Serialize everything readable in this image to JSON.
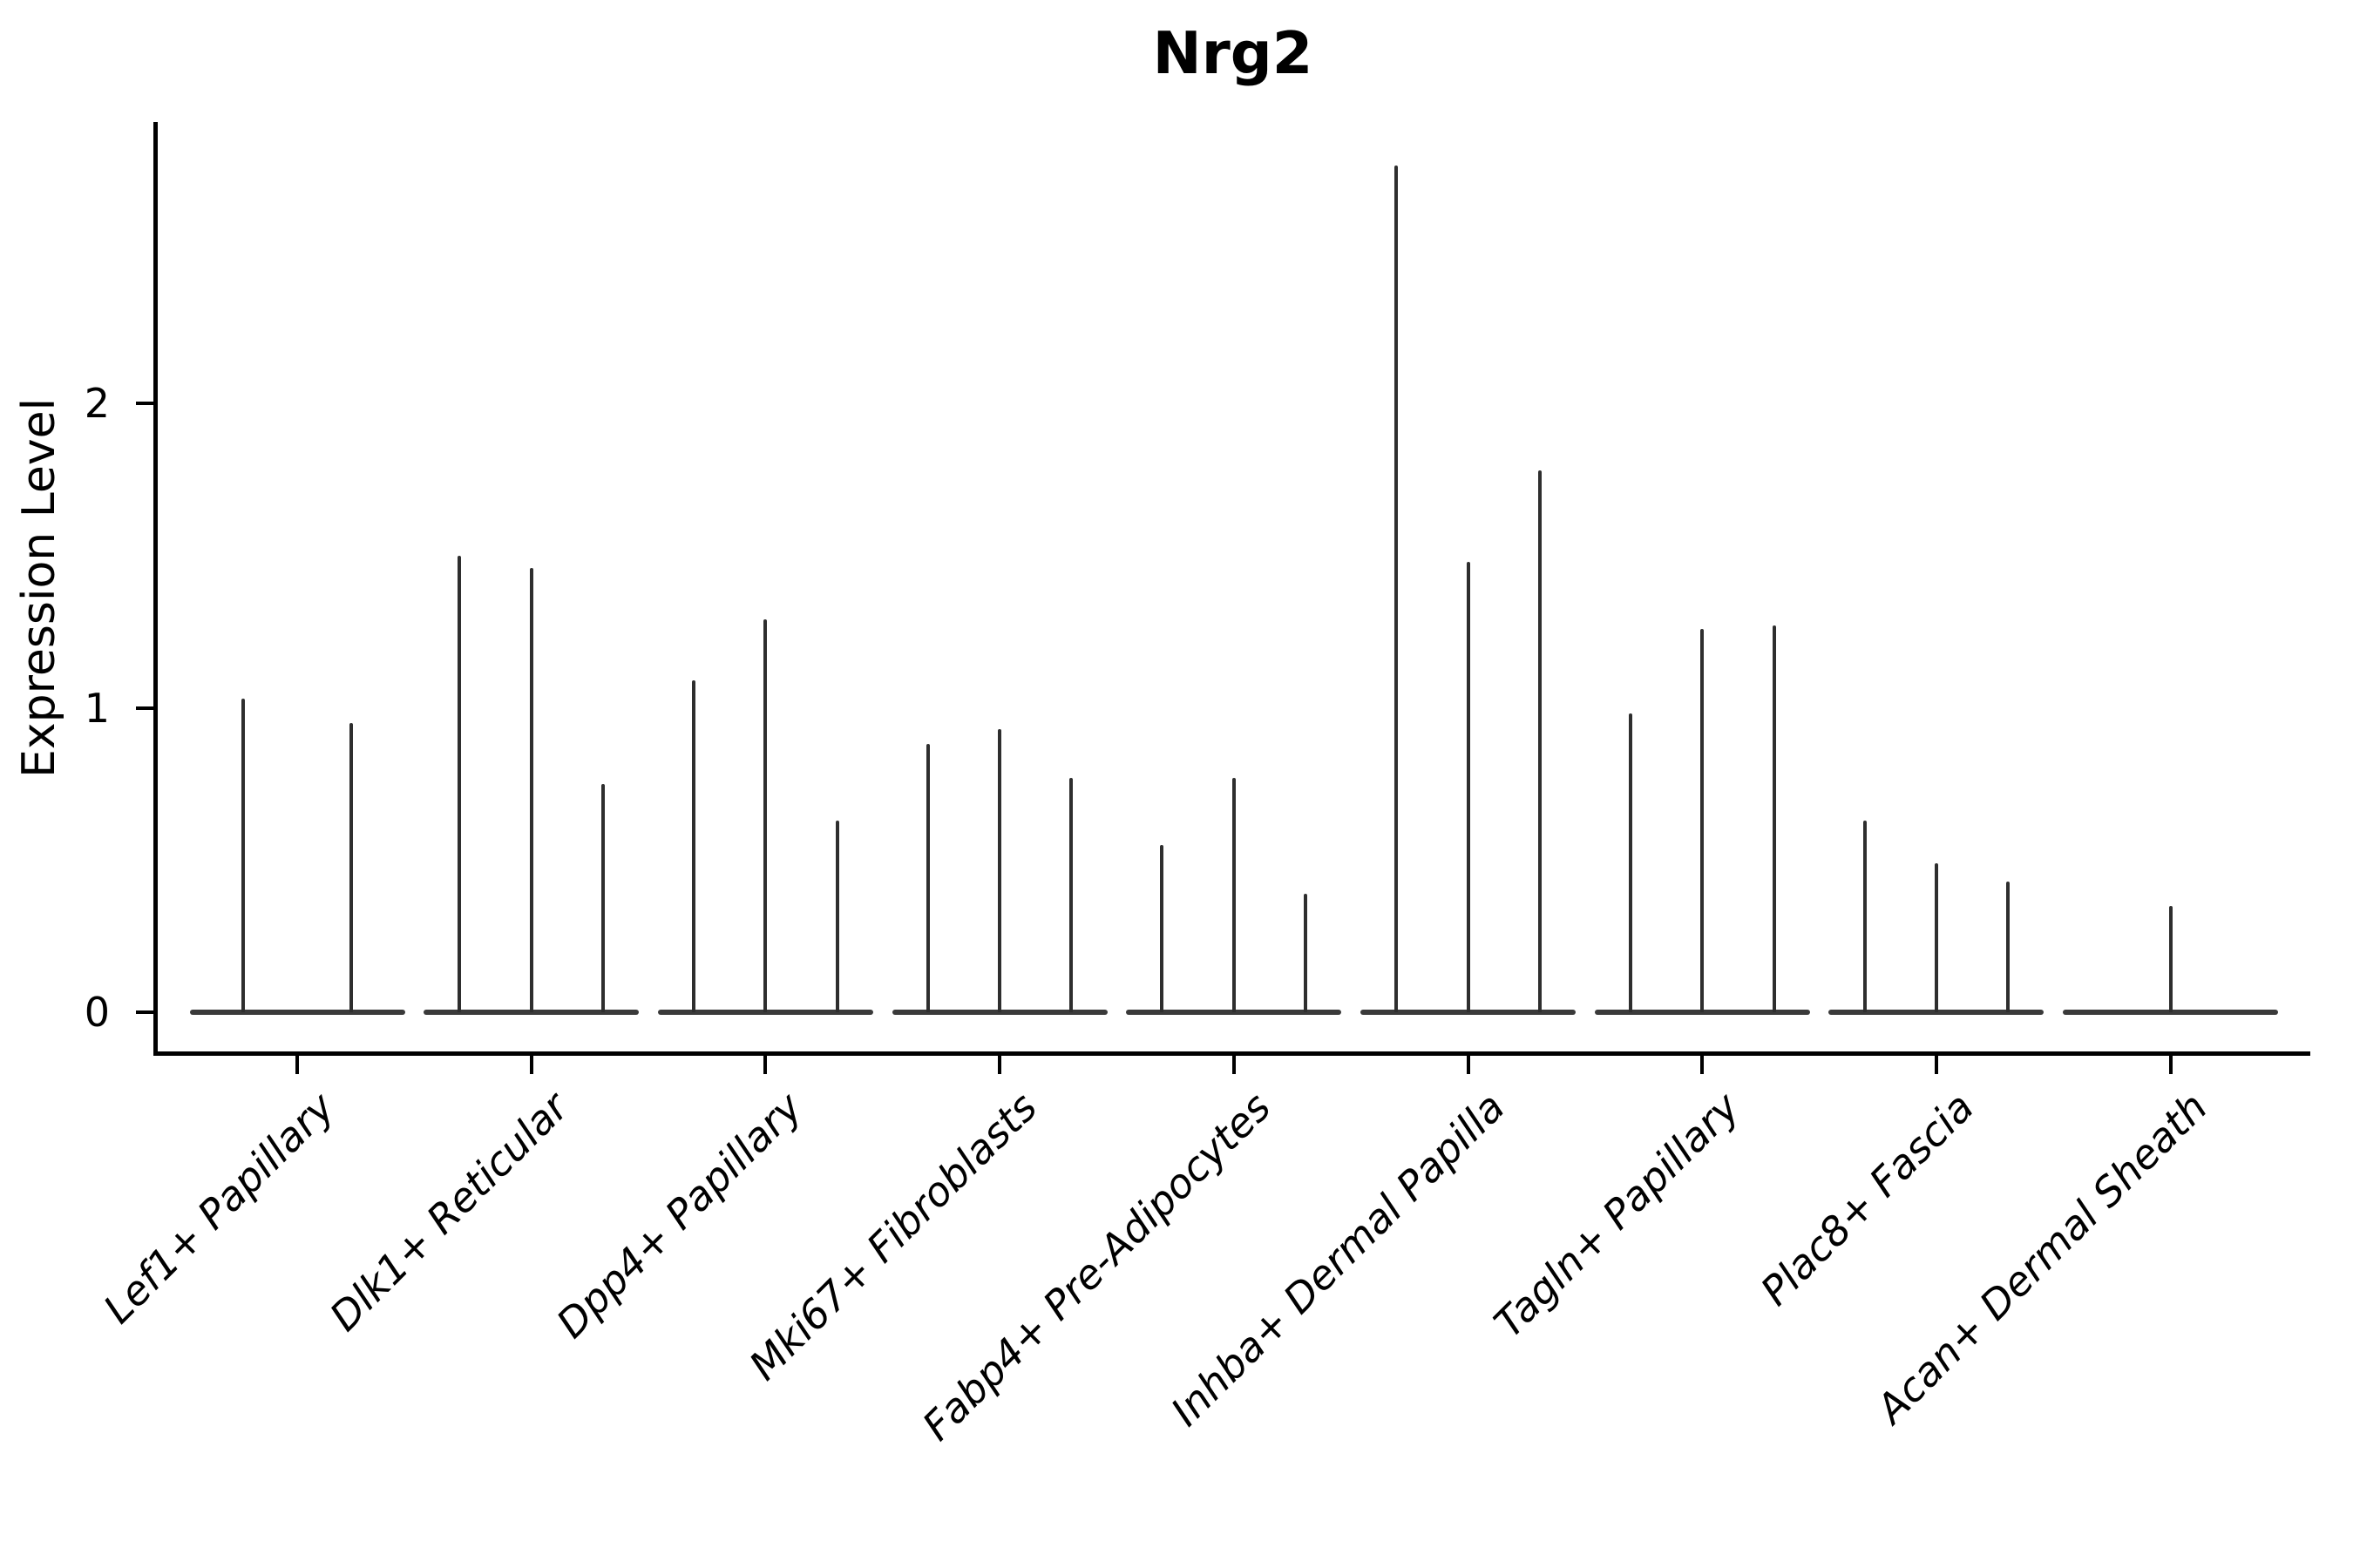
{
  "figure": {
    "background": "#ffffff"
  },
  "chart_data": {
    "type": "violin",
    "title": "Nrg2",
    "ylabel": "Expression Level",
    "xlabel": "",
    "yticks": [
      0,
      1,
      2
    ],
    "ylim": [
      -0.13,
      2.92
    ],
    "grid": false,
    "legend": null,
    "categories": [
      "Lef1+ Papillary",
      "Dlk1+ Reticular",
      "Dpp4+ Papillary",
      "Mki67+ Fibroblasts",
      "Fabp4+ Pre-Adipocytes",
      "Inhba+ Dermal Papilla",
      "Tagln+ Papillary",
      "Plac8+ Fascia",
      "Acan+ Dermal Sheath"
    ],
    "groups": [
      {
        "label": "Lef1+ Papillary",
        "violin_max_expression": [
          1.03,
          0.95
        ]
      },
      {
        "label": "Dlk1+ Reticular",
        "violin_max_expression": [
          1.5,
          1.46,
          0.75
        ]
      },
      {
        "label": "Dpp4+ Papillary",
        "violin_max_expression": [
          1.09,
          1.29,
          0.63
        ]
      },
      {
        "label": "Mki67+ Fibroblasts",
        "violin_max_expression": [
          0.88,
          0.93,
          0.77
        ]
      },
      {
        "label": "Fabp4+ Pre-Adipocytes",
        "violin_max_expression": [
          0.55,
          0.77,
          0.39
        ]
      },
      {
        "label": "Inhba+ Dermal Papilla",
        "violin_max_expression": [
          2.78,
          1.48,
          1.78
        ]
      },
      {
        "label": "Tagln+ Papillary",
        "violin_max_expression": [
          0.98,
          1.26,
          1.27
        ]
      },
      {
        "label": "Plac8+ Fascia",
        "violin_max_expression": [
          0.63,
          0.49,
          0.43
        ]
      },
      {
        "label": "Acan+ Dermal Sheath",
        "violin_max_expression": [
          0.35
        ]
      }
    ],
    "colors": {
      "violin_line": "#2e2e2e",
      "violin_baseline": "#3a3a3a",
      "axis": "#000000"
    }
  }
}
